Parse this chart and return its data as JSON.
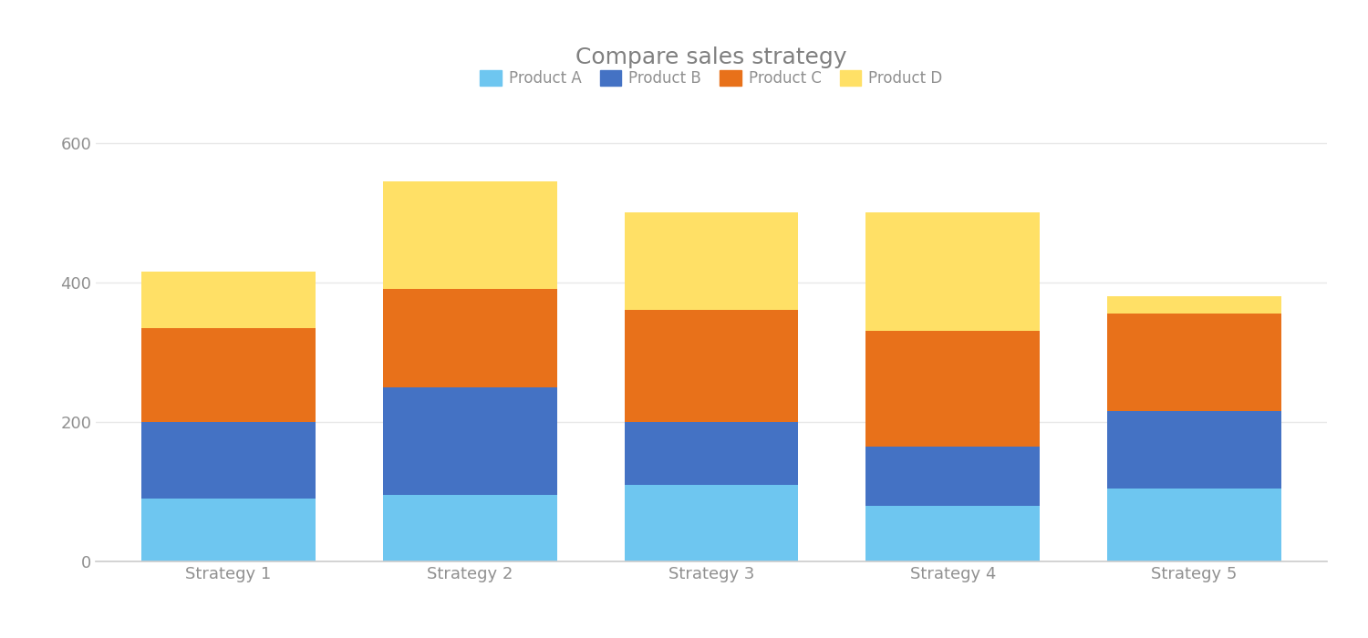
{
  "title": "Compare sales strategy",
  "title_fontsize": 18,
  "title_color": "#808080",
  "categories": [
    "Strategy 1",
    "Strategy 2",
    "Strategy 3",
    "Strategy 4",
    "Strategy 5"
  ],
  "products": [
    "Product A",
    "Product B",
    "Product C",
    "Product D"
  ],
  "values": {
    "Product A": [
      90,
      95,
      110,
      80,
      105
    ],
    "Product B": [
      110,
      155,
      90,
      85,
      110
    ],
    "Product C": [
      135,
      140,
      160,
      165,
      140
    ],
    "Product D": [
      80,
      155,
      140,
      170,
      25
    ]
  },
  "colors": {
    "Product A": "#6EC6F0",
    "Product B": "#4472C4",
    "Product C": "#E8711A",
    "Product D": "#FFE066"
  },
  "ylim": [
    0,
    640
  ],
  "yticks": [
    0,
    200,
    400,
    600
  ],
  "bar_width": 0.72,
  "background_color": "#ffffff",
  "legend_fontsize": 12,
  "tick_fontsize": 13,
  "tick_color": "#909090",
  "spine_color": "#cccccc",
  "grid_color": "#e8e8e8"
}
